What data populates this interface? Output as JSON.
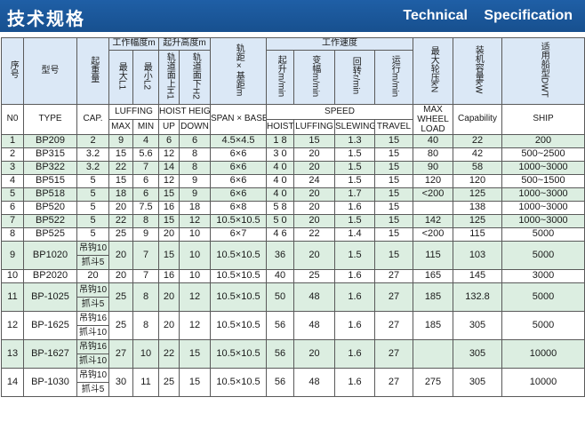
{
  "title_cn": "技术规格",
  "title_en": "Technical   Specification",
  "cn_headers": {
    "no": "序号",
    "type": "型号",
    "cap": "起重量",
    "luffing_group": "工作幅度m",
    "max": "最大L1",
    "min": "最小L2",
    "hoist_group": "起升高度m",
    "up": "轨道面上H1",
    "down": "轨道面下H2",
    "span": "轨距×基距m",
    "speed_group": "工作速度",
    "hoist": "起升m/min",
    "luffing": "变幅m/min",
    "slewing": "回转r/min",
    "travel": "运行m/min",
    "wheel": "最大轮压kN",
    "capability": "装机容量kW",
    "ship": "适用船型DWT"
  },
  "en_headers": {
    "no": "N0",
    "type": "TYPE",
    "cap": "CAP.",
    "luffing_group": "LUFFING",
    "hoist_group": "HOIST HEIGHT",
    "span": "SPAN × BASE",
    "speed_group": "SPEED",
    "wheel_l1": "MAX",
    "wheel_l2": "WHEEL",
    "wheel_l3": "LOAD",
    "capability": "Capability",
    "ship": "SHIP",
    "max": "MAX",
    "min": "MIN",
    "up": "UP",
    "down": "DOWN",
    "hoist": "HOIST",
    "luffing": "LUFFING",
    "slewing": "SLEWING",
    "travel": "TRAVEL"
  },
  "rows": [
    {
      "no": "1",
      "type": "BP209",
      "cap": "2",
      "max": "9",
      "min": "4",
      "up": "6",
      "down": "6",
      "span": "4.5×4.5",
      "hoist": "1 8",
      "luffing": "15",
      "slewing": "1.3",
      "travel": "15",
      "wheel": "40",
      "capability": "22",
      "ship": "200"
    },
    {
      "no": "2",
      "type": "BP315",
      "cap": "3.2",
      "max": "15",
      "min": "5.6",
      "up": "12",
      "down": "8",
      "span": "6×6",
      "hoist": "3 0",
      "luffing": "20",
      "slewing": "1.5",
      "travel": "15",
      "wheel": "80",
      "capability": "42",
      "ship": "500~2500"
    },
    {
      "no": "3",
      "type": "BP322",
      "cap": "3.2",
      "max": "22",
      "min": "7",
      "up": "14",
      "down": "8",
      "span": "6×6",
      "hoist": "4 0",
      "luffing": "20",
      "slewing": "1.5",
      "travel": "15",
      "wheel": "90",
      "capability": "58",
      "ship": "1000~3000"
    },
    {
      "no": "4",
      "type": "BP515",
      "cap": "5",
      "max": "15",
      "min": "6",
      "up": "12",
      "down": "9",
      "span": "6×6",
      "hoist": "4 0",
      "luffing": "24",
      "slewing": "1.5",
      "travel": "15",
      "wheel": "120",
      "capability": "120",
      "ship": "500~1500"
    },
    {
      "no": "5",
      "type": "BP518",
      "cap": "5",
      "max": "18",
      "min": "6",
      "up": "15",
      "down": "9",
      "span": "6×6",
      "hoist": "4 0",
      "luffing": "20",
      "slewing": "1.7",
      "travel": "15",
      "wheel": "<200",
      "capability": "125",
      "ship": "1000~3000"
    },
    {
      "no": "6",
      "type": "BP520",
      "cap": "5",
      "max": "20",
      "min": "7.5",
      "up": "16",
      "down": "18",
      "span": "6×8",
      "hoist": "5 8",
      "luffing": "20",
      "slewing": "1.6",
      "travel": "15",
      "wheel": "",
      "capability": "138",
      "ship": "1000~3000"
    },
    {
      "no": "7",
      "type": "BP522",
      "cap": "5",
      "max": "22",
      "min": "8",
      "up": "15",
      "down": "12",
      "span": "10.5×10.5",
      "hoist": "5 0",
      "luffing": "20",
      "slewing": "1.5",
      "travel": "15",
      "wheel": "142",
      "capability": "125",
      "ship": "1000~3000"
    },
    {
      "no": "8",
      "type": "BP525",
      "cap": "5",
      "max": "25",
      "min": "9",
      "up": "20",
      "down": "10",
      "span": "6×7",
      "hoist": "4 6",
      "luffing": "22",
      "slewing": "1.4",
      "travel": "15",
      "wheel": "<200",
      "capability": "115",
      "ship": "5000"
    },
    {
      "no": "9",
      "type": "BP1020",
      "cap": "吊钩10",
      "cap2": "抓斗5",
      "max": "20",
      "min": "7",
      "up": "15",
      "down": "10",
      "span": "10.5×10.5",
      "hoist": "36",
      "luffing": "20",
      "slewing": "1.5",
      "travel": "15",
      "wheel": "115",
      "capability": "103",
      "ship": "5000"
    },
    {
      "no": "10",
      "type": "BP2020",
      "cap": "20",
      "max": "20",
      "min": "7",
      "up": "16",
      "down": "10",
      "span": "10.5×10.5",
      "hoist": "40",
      "luffing": "25",
      "slewing": "1.6",
      "travel": "27",
      "wheel": "165",
      "capability": "145",
      "ship": "3000"
    },
    {
      "no": "11",
      "type": "BP-1025",
      "cap": "吊钩10",
      "cap2": "抓斗5",
      "max": "25",
      "min": "8",
      "up": "20",
      "down": "12",
      "span": "10.5×10.5",
      "hoist": "50",
      "luffing": "48",
      "slewing": "1.6",
      "travel": "27",
      "wheel": "185",
      "capability": "132.8",
      "ship": "5000"
    },
    {
      "no": "12",
      "type": "BP-1625",
      "cap": "吊钩16",
      "cap2": "抓斗10",
      "max": "25",
      "min": "8",
      "up": "20",
      "down": "12",
      "span": "10.5×10.5",
      "hoist": "56",
      "luffing": "48",
      "slewing": "1.6",
      "travel": "27",
      "wheel": "185",
      "capability": "305",
      "ship": "5000"
    },
    {
      "no": "13",
      "type": "BP-1627",
      "cap": "吊钩16",
      "cap2": "抓斗10",
      "max": "27",
      "min": "10",
      "up": "22",
      "down": "15",
      "span": "10.5×10.5",
      "hoist": "56",
      "luffing": "20",
      "slewing": "1.6",
      "travel": "27",
      "wheel": "",
      "capability": "305",
      "ship": "10000"
    },
    {
      "no": "14",
      "type": "BP-1030",
      "cap": "吊钩10",
      "cap2": "抓斗5",
      "max": "30",
      "min": "11",
      "up": "25",
      "down": "15",
      "span": "10.5×10.5",
      "hoist": "56",
      "luffing": "48",
      "slewing": "1.6",
      "travel": "27",
      "wheel": "275",
      "capability": "305",
      "ship": "10000"
    }
  ],
  "colors": {
    "header_bar": "#1f5fa6",
    "header_cells": "#dbe8f6",
    "row_green": "#dceee1",
    "row_white": "#ffffff",
    "border": "#5a5a5a"
  }
}
